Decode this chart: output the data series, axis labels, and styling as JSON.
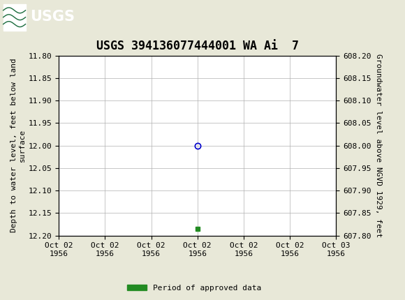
{
  "title": "USGS 394136077444001 WA Ai  7",
  "ylabel_left": "Depth to water level, feet below land\nsurface",
  "ylabel_right": "Groundwater level above NGVD 1929, feet",
  "ylim_left_top": 11.8,
  "ylim_left_bottom": 12.2,
  "ylim_right_top": 608.2,
  "ylim_right_bottom": 607.8,
  "yticks_left": [
    11.8,
    11.85,
    11.9,
    11.95,
    12.0,
    12.05,
    12.1,
    12.15,
    12.2
  ],
  "yticks_right": [
    608.2,
    608.15,
    608.1,
    608.05,
    608.0,
    607.95,
    607.9,
    607.85,
    607.8
  ],
  "yticks_right_display": [
    608.2,
    608.15,
    608.1,
    608.05,
    608.0,
    607.95,
    607.9,
    607.85,
    607.8
  ],
  "xlim": [
    0,
    6
  ],
  "xtick_labels": [
    "Oct 02\n1956",
    "Oct 02\n1956",
    "Oct 02\n1956",
    "Oct 02\n1956",
    "Oct 02\n1956",
    "Oct 02\n1956",
    "Oct 03\n1956"
  ],
  "xtick_positions": [
    0,
    1,
    2,
    3,
    4,
    5,
    6
  ],
  "data_point_x": 3,
  "data_point_y": 12.0,
  "data_point_color": "#0000cc",
  "data_point_marker": "o",
  "data_point_size": 6,
  "green_square_x": 3,
  "green_square_y": 12.185,
  "green_square_color": "#228B22",
  "header_color": "#1a6b3c",
  "background_color": "#e8e8d8",
  "plot_bg_color": "#ffffff",
  "grid_color": "#b0b0b0",
  "legend_label": "Period of approved data",
  "legend_color": "#228B22",
  "title_fontsize": 12,
  "axis_fontsize": 8,
  "tick_fontsize": 8,
  "font_family": "monospace"
}
